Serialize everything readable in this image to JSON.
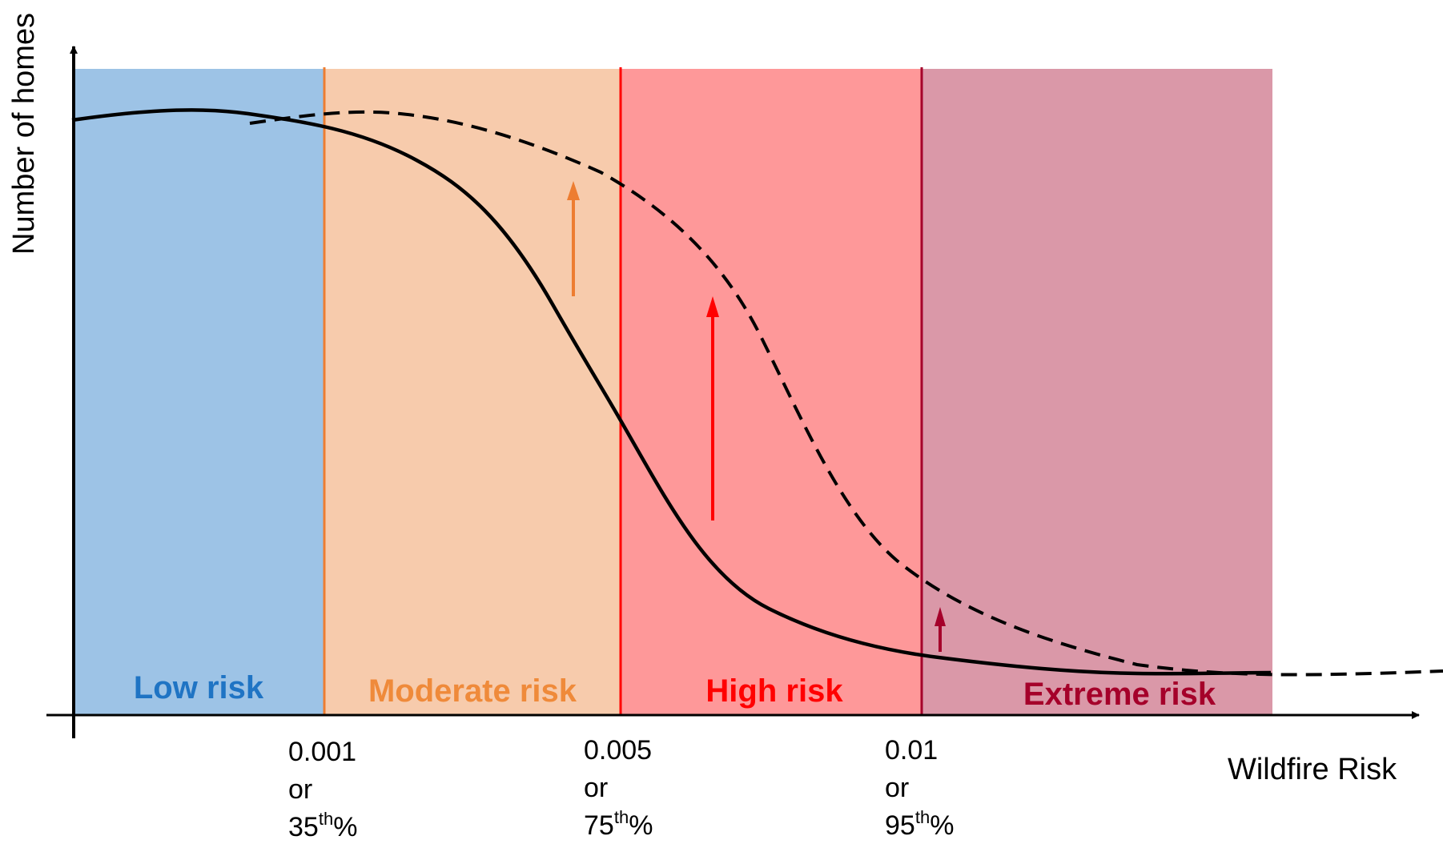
{
  "chart_data": {
    "type": "line",
    "ylabel": "Number of homes",
    "xlabel": "Wildfire Risk",
    "zones": [
      {
        "name": "Low risk",
        "fill": "#9dc3e6",
        "label_color": "#1f74c4"
      },
      {
        "name": "Moderate risk",
        "fill": "#f7cbac",
        "label_color": "#ef8a3a"
      },
      {
        "name": "High risk",
        "fill": "#fe9899",
        "label_color": "#ff0000"
      },
      {
        "name": "Extreme risk",
        "fill": "#da98a8",
        "label_color": "#a5002a"
      }
    ],
    "thresholds": [
      {
        "value": "0.001",
        "connector": "or",
        "percentile": "35",
        "sup": "th",
        "suffix": "%",
        "color": "#ed7d31"
      },
      {
        "value": "0.005",
        "connector": "or",
        "percentile": "75",
        "sup": "th",
        "suffix": "%",
        "color": "#ff0000"
      },
      {
        "value": "0.01",
        "connector": "or",
        "percentile": "95",
        "sup": "th",
        "suffix": "%",
        "color": "#a5002a"
      }
    ],
    "series": [
      {
        "style": "solid",
        "color": "#000000"
      },
      {
        "style": "dashed",
        "color": "#000000"
      }
    ],
    "shift_arrows": [
      {
        "zone": "Moderate risk",
        "color": "#ed7d31"
      },
      {
        "zone": "High risk",
        "color": "#ff0000"
      },
      {
        "zone": "Extreme risk",
        "color": "#a5002a"
      }
    ]
  }
}
